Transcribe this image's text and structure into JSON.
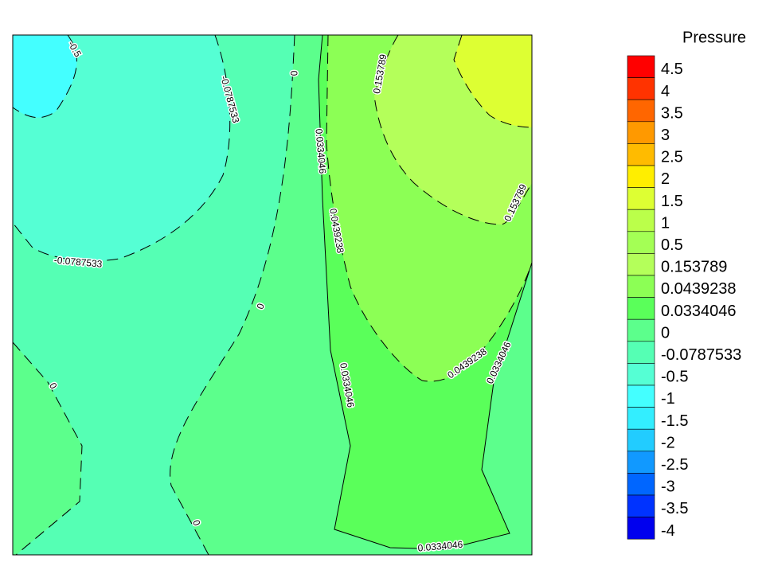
{
  "chart_data": {
    "type": "contour",
    "legend_title": "Pressure",
    "levels": [
      4.5,
      4,
      3.5,
      3,
      2.5,
      2,
      1.5,
      1,
      0.5,
      0.153789,
      0.0439238,
      0.0334046,
      0,
      -0.0787533,
      -0.5,
      -1,
      -1.5,
      -2,
      -2.5,
      -3,
      -3.5,
      -4
    ],
    "colors": [
      "#ff0000",
      "#ff3300",
      "#ff6600",
      "#ff9900",
      "#ffbb00",
      "#ffee00",
      "#ddff33",
      "#bbff4a",
      "#a4ff55",
      "#b4ff5a",
      "#8cff55",
      "#5aff5a",
      "#5cff8c",
      "#55ffb4",
      "#55ffd4",
      "#44ffff",
      "#33eeff",
      "#22ccff",
      "#1199ff",
      "#0066ff",
      "#0033ff",
      "#0000ee"
    ],
    "contour_labels": [
      -0.5,
      -0.0787533,
      0,
      0.153789,
      0.0334046,
      0.0439238,
      0.153789,
      -0.0787533,
      0,
      0,
      0.0334046,
      0.0439238,
      0.0334046,
      0,
      0.0334046
    ]
  }
}
